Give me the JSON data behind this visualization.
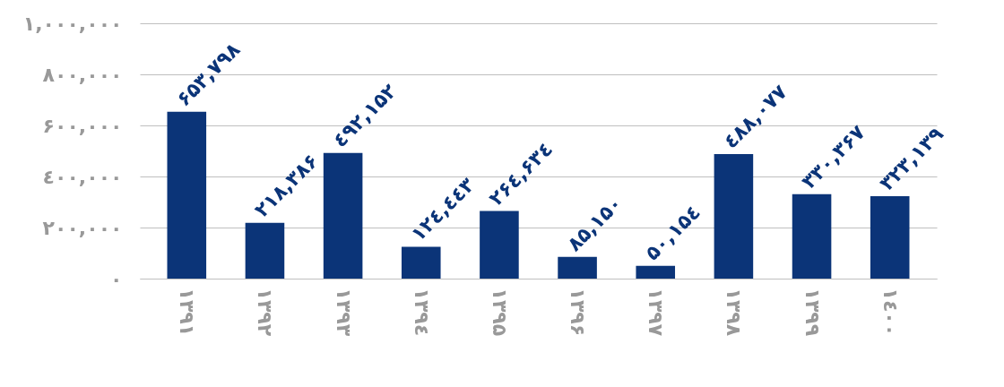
{
  "chart_data": {
    "type": "bar",
    "categories": [
      "۱۳۹۱",
      "۱۳۹۲",
      "۱۳۹۳",
      "۱۳۹٤",
      "۱۳۹۵",
      "۱۳۹۶",
      "۱۳۹۷",
      "۱۳۹۸",
      "۱۳۹۹",
      "۱٤۰۰"
    ],
    "values": [
      653798,
      218386,
      492152,
      124443,
      264634,
      85150,
      50154,
      488077,
      330367,
      323139
    ],
    "value_labels": [
      "۶۵۳,۷۹۸",
      "۲۱۸,۳۸۶",
      "٤۹۲,۱۵۲",
      "۱۲٤,٤٤۳",
      "۲۶٤,۶۳٤",
      "۸۵,۱۵۰",
      "۵۰,۱۵٤",
      "٤۸۸,۰۷۷",
      "۳۳۰,۳۶۷",
      "۳۲۳,۱۳۹"
    ],
    "color": "#0b3478",
    "ylim": [
      0,
      1000000
    ],
    "yticks": [
      {
        "value": 0,
        "label": "۰"
      },
      {
        "value": 200000,
        "label": "۲۰۰,۰۰۰"
      },
      {
        "value": 400000,
        "label": "٤۰۰,۰۰۰"
      },
      {
        "value": 600000,
        "label": "۶۰۰,۰۰۰"
      },
      {
        "value": 800000,
        "label": "۸۰۰,۰۰۰"
      },
      {
        "value": 1000000,
        "label": "۱,۰۰۰,۰۰۰"
      }
    ],
    "grid": "y"
  }
}
